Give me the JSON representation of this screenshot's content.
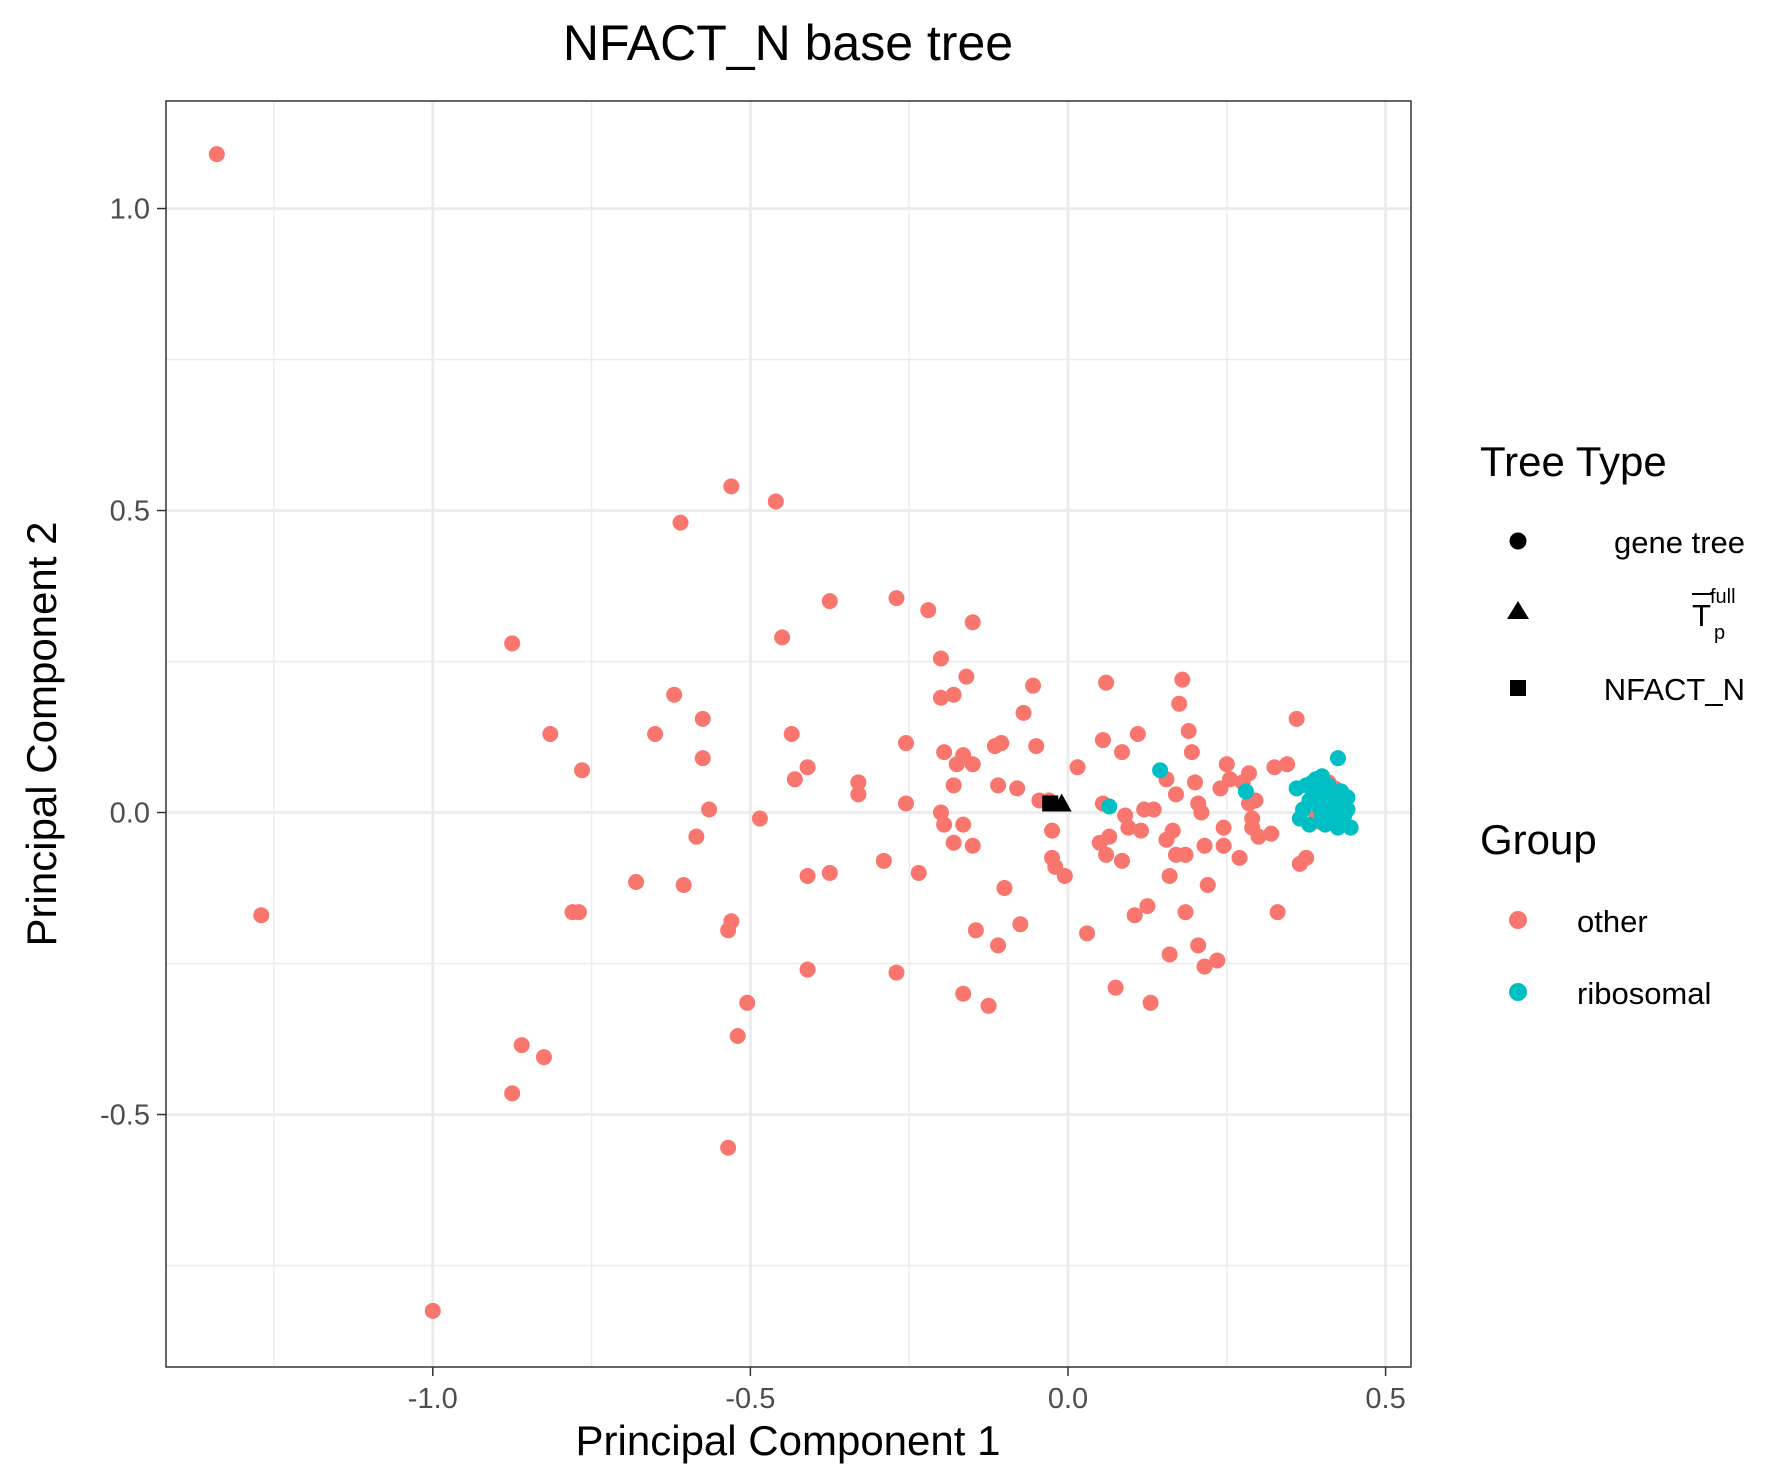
{
  "chart_data": {
    "type": "scatter",
    "title": "NFACT_N base tree",
    "xlabel": "Principal Component 1",
    "ylabel": "Principal Component 2",
    "xlim": [
      -1.42,
      0.54
    ],
    "ylim": [
      -0.918,
      1.178
    ],
    "x_ticks": [
      -1.0,
      -0.5,
      0.0,
      0.5
    ],
    "x_tick_labels": [
      "-1.0",
      "-0.5",
      "0.0",
      "0.5"
    ],
    "y_ticks": [
      1.0,
      0.5,
      0.0,
      -0.5
    ],
    "y_tick_labels": [
      "1.0",
      "0.5",
      "0.0",
      "-0.5"
    ],
    "x_minor": [
      -1.25,
      -0.75,
      -0.25,
      0.25
    ],
    "y_minor": [
      0.75,
      0.25,
      -0.25,
      -0.75
    ],
    "grid": true,
    "colors": {
      "other": "#F8766D",
      "ribosomal": "#00BFC4",
      "marker": "#000000"
    },
    "legend": {
      "position": "right",
      "tree_type": {
        "title": "Tree Type",
        "items": [
          {
            "shape": "circle",
            "label": "gene tree"
          },
          {
            "shape": "triangle",
            "label": "T",
            "sup": "full",
            "sub": "p"
          },
          {
            "shape": "square",
            "label": "NFACT_N"
          }
        ]
      },
      "group": {
        "title": "Group",
        "items": [
          {
            "color": "#F8766D",
            "label": "other"
          },
          {
            "color": "#00BFC4",
            "label": "ribosomal"
          }
        ]
      }
    },
    "series": [
      {
        "name": "other",
        "shape": "circle",
        "color": "#F8766D",
        "points": [
          [
            -1.34,
            1.09
          ],
          [
            -1.27,
            -0.17
          ],
          [
            -1.0,
            -0.825
          ],
          [
            -0.875,
            -0.465
          ],
          [
            -0.86,
            -0.385
          ],
          [
            -0.825,
            -0.405
          ],
          [
            -0.875,
            0.28
          ],
          [
            -0.815,
            0.13
          ],
          [
            -0.765,
            0.07
          ],
          [
            -0.78,
            -0.165
          ],
          [
            -0.77,
            -0.165
          ],
          [
            -0.68,
            -0.115
          ],
          [
            -0.65,
            0.13
          ],
          [
            -0.62,
            0.195
          ],
          [
            -0.61,
            0.48
          ],
          [
            -0.605,
            -0.12
          ],
          [
            -0.585,
            -0.04
          ],
          [
            -0.575,
            0.155
          ],
          [
            -0.575,
            0.09
          ],
          [
            -0.565,
            0.005
          ],
          [
            -0.53,
            0.54
          ],
          [
            -0.535,
            -0.195
          ],
          [
            -0.53,
            -0.18
          ],
          [
            -0.535,
            -0.555
          ],
          [
            -0.52,
            -0.37
          ],
          [
            -0.505,
            -0.315
          ],
          [
            -0.485,
            -0.01
          ],
          [
            -0.46,
            0.515
          ],
          [
            -0.45,
            0.29
          ],
          [
            -0.435,
            0.13
          ],
          [
            -0.43,
            0.055
          ],
          [
            -0.41,
            0.075
          ],
          [
            -0.41,
            -0.105
          ],
          [
            -0.41,
            -0.26
          ],
          [
            -0.375,
            0.35
          ],
          [
            -0.375,
            -0.1
          ],
          [
            -0.33,
            0.05
          ],
          [
            -0.33,
            0.03
          ],
          [
            -0.29,
            -0.08
          ],
          [
            -0.27,
            0.355
          ],
          [
            -0.27,
            -0.265
          ],
          [
            -0.255,
            0.115
          ],
          [
            -0.255,
            0.015
          ],
          [
            -0.235,
            -0.1
          ],
          [
            -0.22,
            0.335
          ],
          [
            -0.2,
            0.255
          ],
          [
            -0.2,
            0.19
          ],
          [
            -0.2,
            0.0
          ],
          [
            -0.195,
            0.1
          ],
          [
            -0.195,
            -0.02
          ],
          [
            -0.18,
            0.195
          ],
          [
            -0.18,
            0.045
          ],
          [
            -0.175,
            0.08
          ],
          [
            -0.18,
            -0.05
          ],
          [
            -0.165,
            0.095
          ],
          [
            -0.165,
            -0.02
          ],
          [
            -0.16,
            0.225
          ],
          [
            -0.165,
            -0.3
          ],
          [
            -0.15,
            0.315
          ],
          [
            -0.15,
            0.08
          ],
          [
            -0.15,
            -0.055
          ],
          [
            -0.145,
            -0.195
          ],
          [
            -0.125,
            -0.32
          ],
          [
            -0.115,
            0.11
          ],
          [
            -0.11,
            0.045
          ],
          [
            -0.11,
            -0.22
          ],
          [
            -0.105,
            0.115
          ],
          [
            -0.1,
            -0.125
          ],
          [
            -0.08,
            0.04
          ],
          [
            -0.075,
            -0.185
          ],
          [
            -0.07,
            0.165
          ],
          [
            -0.055,
            0.21
          ],
          [
            -0.05,
            0.11
          ],
          [
            -0.045,
            0.02
          ],
          [
            -0.03,
            0.02
          ],
          [
            -0.025,
            -0.03
          ],
          [
            -0.025,
            -0.075
          ],
          [
            -0.02,
            -0.09
          ],
          [
            -0.005,
            -0.105
          ],
          [
            0.015,
            0.075
          ],
          [
            0.03,
            -0.2
          ],
          [
            0.05,
            -0.05
          ],
          [
            0.055,
            0.12
          ],
          [
            0.055,
            0.015
          ],
          [
            0.06,
            0.215
          ],
          [
            0.06,
            -0.07
          ],
          [
            0.065,
            -0.04
          ],
          [
            0.075,
            -0.29
          ],
          [
            0.085,
            0.1
          ],
          [
            0.085,
            -0.08
          ],
          [
            0.09,
            -0.005
          ],
          [
            0.095,
            -0.025
          ],
          [
            0.105,
            -0.17
          ],
          [
            0.11,
            0.13
          ],
          [
            0.115,
            -0.03
          ],
          [
            0.12,
            0.005
          ],
          [
            0.125,
            -0.155
          ],
          [
            0.13,
            -0.315
          ],
          [
            0.135,
            0.005
          ],
          [
            0.155,
            0.055
          ],
          [
            0.155,
            -0.045
          ],
          [
            0.16,
            -0.235
          ],
          [
            0.16,
            -0.105
          ],
          [
            0.165,
            -0.03
          ],
          [
            0.17,
            0.03
          ],
          [
            0.17,
            -0.07
          ],
          [
            0.175,
            0.18
          ],
          [
            0.18,
            0.22
          ],
          [
            0.185,
            -0.07
          ],
          [
            0.185,
            -0.165
          ],
          [
            0.19,
            0.135
          ],
          [
            0.195,
            0.1
          ],
          [
            0.2,
            0.05
          ],
          [
            0.205,
            0.015
          ],
          [
            0.205,
            -0.22
          ],
          [
            0.21,
            0.0
          ],
          [
            0.215,
            -0.055
          ],
          [
            0.215,
            -0.255
          ],
          [
            0.22,
            -0.12
          ],
          [
            0.235,
            -0.245
          ],
          [
            0.24,
            0.04
          ],
          [
            0.245,
            -0.025
          ],
          [
            0.245,
            -0.055
          ],
          [
            0.25,
            0.08
          ],
          [
            0.255,
            0.055
          ],
          [
            0.27,
            -0.075
          ],
          [
            0.275,
            0.05
          ],
          [
            0.285,
            0.065
          ],
          [
            0.285,
            0.015
          ],
          [
            0.29,
            -0.01
          ],
          [
            0.29,
            -0.025
          ],
          [
            0.295,
            0.02
          ],
          [
            0.3,
            -0.04
          ],
          [
            0.32,
            -0.035
          ],
          [
            0.325,
            0.075
          ],
          [
            0.33,
            -0.165
          ],
          [
            0.345,
            0.08
          ],
          [
            0.36,
            0.155
          ],
          [
            0.365,
            -0.085
          ],
          [
            0.375,
            -0.075
          ],
          [
            0.385,
            0.025
          ],
          [
            0.39,
            0.0
          ],
          [
            0.395,
            -0.015
          ],
          [
            0.41,
            0.05
          ],
          [
            0.42,
            0.04
          ],
          [
            0.425,
            -0.01
          ]
        ]
      },
      {
        "name": "ribosomal",
        "shape": "circle",
        "color": "#00BFC4",
        "points": [
          [
            0.065,
            0.01
          ],
          [
            0.145,
            0.07
          ],
          [
            0.28,
            0.035
          ],
          [
            0.36,
            0.04
          ],
          [
            0.365,
            -0.01
          ],
          [
            0.37,
            0.005
          ],
          [
            0.375,
            0.045
          ],
          [
            0.38,
            0.02
          ],
          [
            0.38,
            -0.02
          ],
          [
            0.385,
            0.05
          ],
          [
            0.39,
            0.03
          ],
          [
            0.39,
            0.055
          ],
          [
            0.395,
            0.01
          ],
          [
            0.4,
            0.06
          ],
          [
            0.4,
            -0.005
          ],
          [
            0.405,
            0.035
          ],
          [
            0.405,
            -0.02
          ],
          [
            0.41,
            0.015
          ],
          [
            0.41,
            0.045
          ],
          [
            0.415,
            -0.01
          ],
          [
            0.42,
            0.005
          ],
          [
            0.42,
            0.02
          ],
          [
            0.425,
            0.09
          ],
          [
            0.425,
            -0.025
          ],
          [
            0.43,
            0.035
          ],
          [
            0.43,
            0.01
          ],
          [
            0.435,
            -0.005
          ],
          [
            0.44,
            0.025
          ],
          [
            0.44,
            0.005
          ],
          [
            0.445,
            -0.025
          ],
          [
            0.42,
            0.0
          ],
          [
            0.4,
            0.02
          ]
        ]
      },
      {
        "name": "T_p^full",
        "shape": "triangle",
        "color": "#000000",
        "points": [
          [
            -0.01,
            0.015
          ]
        ]
      },
      {
        "name": "NFACT_N",
        "shape": "square",
        "color": "#000000",
        "points": [
          [
            -0.028,
            0.015
          ]
        ]
      }
    ]
  }
}
